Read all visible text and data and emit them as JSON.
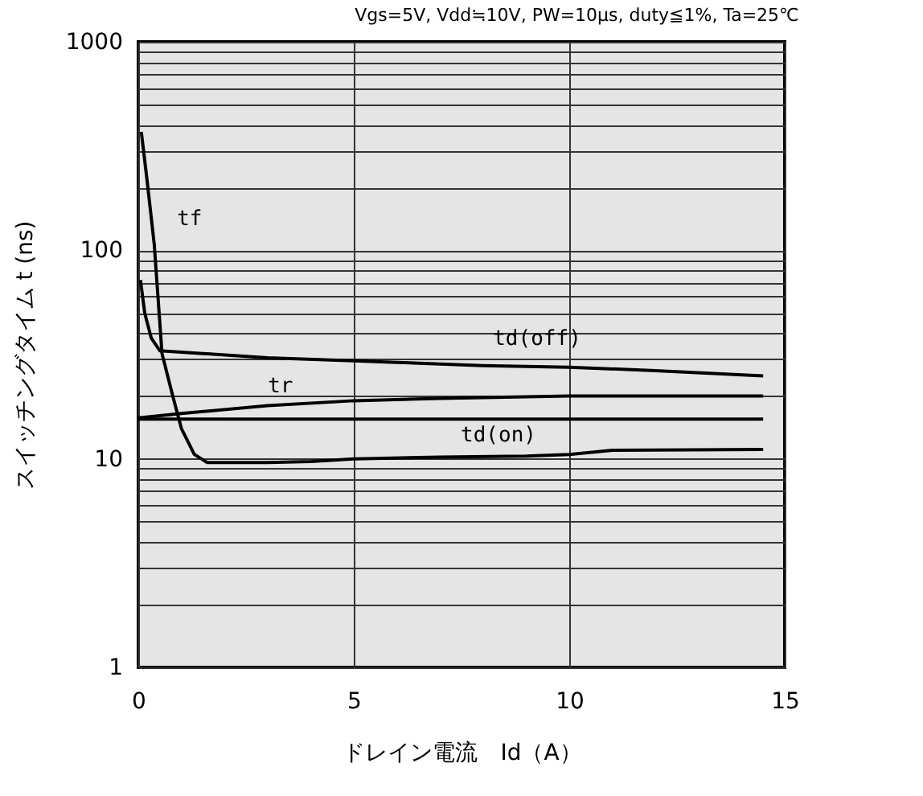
{
  "chart_data": {
    "type": "line",
    "title": "Vgs=5V, Vdd≒10V, PW=10μs, duty≦1%, Ta=25℃",
    "xlabel": "ドレイン電流　Id（A）",
    "ylabel": "スイッチングタイム t (ns)",
    "log": "y",
    "grid": true,
    "legend": false,
    "xlim": [
      0,
      15
    ],
    "xticks": [
      0,
      5,
      10,
      15
    ],
    "ylim": [
      1,
      1000
    ],
    "yticks": [
      1,
      {
        "value": 2,
        "label": null
      },
      {
        "value": 3,
        "label": null
      },
      {
        "value": 4,
        "label": null
      },
      {
        "value": 5,
        "label": null
      },
      {
        "value": 6,
        "label": null
      },
      {
        "value": 7,
        "label": null
      },
      {
        "value": 8,
        "label": null
      },
      {
        "value": 9,
        "label": null
      },
      10,
      {
        "value": 20,
        "label": null
      },
      {
        "value": 30,
        "label": null
      },
      {
        "value": 40,
        "label": null
      },
      {
        "value": 50,
        "label": null
      },
      {
        "value": 60,
        "label": null
      },
      {
        "value": 70,
        "label": null
      },
      {
        "value": 80,
        "label": null
      },
      {
        "value": 90,
        "label": null
      },
      100,
      {
        "value": 200,
        "label": null
      },
      {
        "value": 300,
        "label": null
      },
      {
        "value": 400,
        "label": null
      },
      {
        "value": 500,
        "label": null
      },
      {
        "value": 600,
        "label": null
      },
      {
        "value": 700,
        "label": null
      },
      {
        "value": 800,
        "label": null
      },
      {
        "value": 900,
        "label": null
      },
      1000
    ],
    "series": [
      {
        "name": "tf",
        "color": "#000000",
        "x": [
          0.07,
          0.2,
          0.37,
          0.55,
          0.8,
          1.0,
          1.3,
          1.6,
          3,
          4,
          5,
          7,
          9,
          10,
          11,
          14.5
        ],
        "values": [
          370,
          220,
          107,
          32,
          20,
          14,
          10.5,
          9.6,
          9.6,
          9.7,
          10,
          10.2,
          10.3,
          10.5,
          11,
          11.1
        ]
      },
      {
        "name": "td(off)",
        "color": "#000000",
        "x": [
          0.05,
          0.15,
          0.3,
          0.5,
          1,
          3,
          5,
          6,
          8,
          10,
          12,
          14.5
        ],
        "values": [
          72,
          50,
          38,
          33,
          32.5,
          30.5,
          29.5,
          29,
          28,
          27.5,
          26.5,
          25
        ]
      },
      {
        "name": "tr",
        "color": "#000000",
        "x": [
          0,
          1,
          3,
          5,
          7,
          10,
          14.5
        ],
        "values": [
          15.7,
          16.5,
          18,
          19,
          19.5,
          20,
          20
        ]
      },
      {
        "name": "td(on)",
        "color": "#000000",
        "x": [
          0,
          5,
          10,
          14.5
        ],
        "values": [
          15.5,
          15.5,
          15.5,
          15.5
        ]
      }
    ]
  }
}
